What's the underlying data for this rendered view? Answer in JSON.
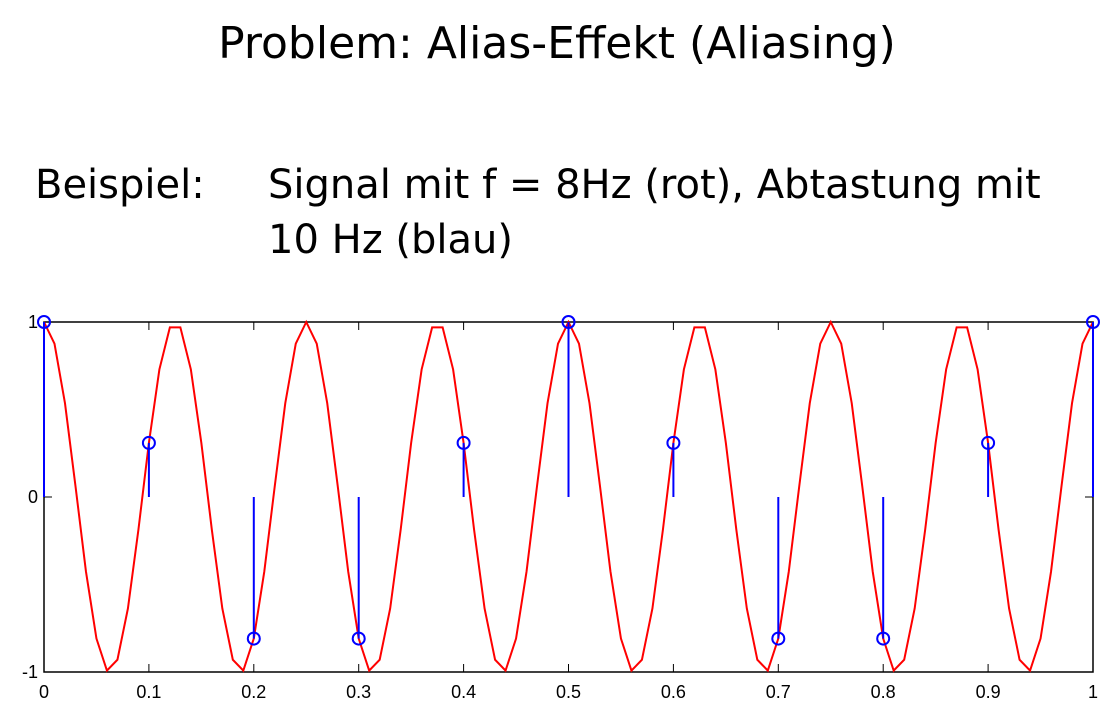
{
  "chart_data": {
    "type": "line-stem",
    "title": "Problem: Alias-Effekt (Aliasing)",
    "label": "Beispiel:",
    "description": [
      "Signal mit  f = 8Hz (rot), Abtastung mit",
      "10 Hz (blau)"
    ],
    "xlim": [
      0,
      1
    ],
    "ylim": [
      -1,
      1
    ],
    "xticks": [
      0,
      0.1,
      0.2,
      0.3,
      0.4,
      0.5,
      0.6,
      0.7,
      0.8,
      0.9,
      1
    ],
    "yticks": [
      -1,
      0,
      1
    ],
    "series": [
      {
        "color": "#ff0000",
        "kind": "line",
        "x": [
          0,
          0.01,
          0.02,
          0.03,
          0.04,
          0.05,
          0.06,
          0.07,
          0.08,
          0.09,
          0.1,
          0.11,
          0.12,
          0.13,
          0.14,
          0.15,
          0.16,
          0.17,
          0.18,
          0.19,
          0.2,
          0.21,
          0.22,
          0.23,
          0.24,
          0.25,
          0.26,
          0.27,
          0.28,
          0.29,
          0.3,
          0.31,
          0.32,
          0.33,
          0.34,
          0.35,
          0.36,
          0.37,
          0.38,
          0.39,
          0.4,
          0.41,
          0.42,
          0.43,
          0.44,
          0.45,
          0.46,
          0.47,
          0.48,
          0.49,
          0.5,
          0.51,
          0.52,
          0.53,
          0.54,
          0.55,
          0.56,
          0.57,
          0.58,
          0.59,
          0.6,
          0.61,
          0.62,
          0.63,
          0.64,
          0.65,
          0.66,
          0.67,
          0.68,
          0.69,
          0.7,
          0.71,
          0.72,
          0.73,
          0.74,
          0.75,
          0.76,
          0.77,
          0.78,
          0.79,
          0.8,
          0.81,
          0.82,
          0.83,
          0.84,
          0.85,
          0.86,
          0.87,
          0.88,
          0.89,
          0.9,
          0.91,
          0.92,
          0.93,
          0.94,
          0.95,
          0.96,
          0.97,
          0.98,
          0.99,
          1
        ],
        "values": [
          1,
          0.876,
          0.536,
          0.063,
          -0.426,
          -0.809,
          -0.992,
          -0.93,
          -0.637,
          -0.187,
          0.309,
          0.729,
          0.969,
          0.969,
          0.729,
          0.309,
          -0.187,
          -0.637,
          -0.93,
          -0.992,
          -0.809,
          -0.426,
          0.063,
          0.536,
          0.876,
          1,
          0.876,
          0.536,
          0.063,
          -0.426,
          -0.809,
          -0.992,
          -0.93,
          -0.637,
          -0.187,
          0.309,
          0.729,
          0.969,
          0.969,
          0.729,
          0.309,
          -0.187,
          -0.637,
          -0.93,
          -0.992,
          -0.809,
          -0.426,
          0.063,
          0.536,
          0.876,
          1,
          0.876,
          0.536,
          0.063,
          -0.426,
          -0.809,
          -0.992,
          -0.93,
          -0.637,
          -0.187,
          0.309,
          0.729,
          0.969,
          0.969,
          0.729,
          0.309,
          -0.187,
          -0.637,
          -0.93,
          -0.992,
          -0.809,
          -0.426,
          0.063,
          0.536,
          0.876,
          1,
          0.876,
          0.536,
          0.063,
          -0.426,
          -0.809,
          -0.992,
          -0.93,
          -0.637,
          -0.187,
          0.309,
          0.729,
          0.969,
          0.969,
          0.729,
          0.309,
          -0.187,
          -0.637,
          -0.93,
          -0.992,
          -0.809,
          -0.426,
          0.063,
          0.536,
          0.876,
          1
        ]
      },
      {
        "color": "#0000ff",
        "kind": "stem",
        "x": [
          0,
          0.1,
          0.2,
          0.3,
          0.4,
          0.5,
          0.6,
          0.7,
          0.8,
          0.9,
          1
        ],
        "values": [
          1,
          0.309,
          -0.809,
          -0.809,
          0.309,
          1,
          0.309,
          -0.809,
          -0.809,
          0.309,
          1
        ]
      }
    ]
  }
}
